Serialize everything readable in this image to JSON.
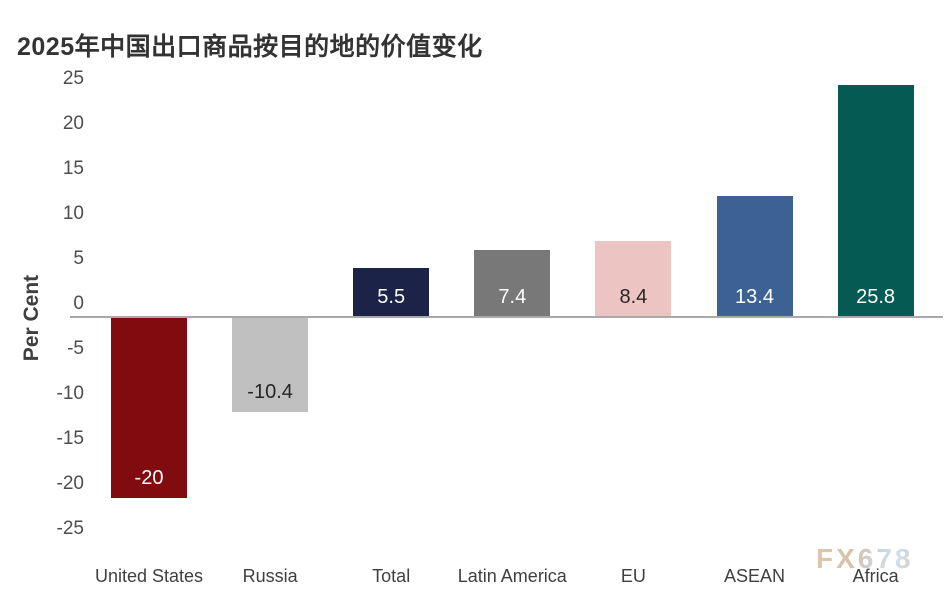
{
  "page": {
    "title": "2025年中国出口商品按目的地的价值变化",
    "watermark": "FX678"
  },
  "chart_data": {
    "type": "bar",
    "title": "2025年中国出口商品按目的地的价值变化",
    "xlabel": "",
    "ylabel": "Per Cent",
    "ylim": [
      -25,
      25
    ],
    "yticks": [
      25,
      20,
      15,
      10,
      5,
      0,
      -5,
      -10,
      -15,
      -20,
      -25
    ],
    "grid": false,
    "legend_position": "none",
    "categories": [
      "United States",
      "Russia",
      "Total",
      "Latin America",
      "EU",
      "ASEAN",
      "Africa"
    ],
    "values": [
      -20,
      -10.4,
      5.5,
      7.4,
      8.4,
      13.4,
      25.8
    ],
    "bar_labels": [
      "-20",
      "-10.4",
      "5.5",
      "7.4",
      "8.4",
      "13.4",
      "25.8"
    ],
    "bar_colors": [
      "#800c10",
      "#c0c0c0",
      "#1b2448",
      "#787878",
      "#ecc4c1",
      "#3b6292",
      "#055b54"
    ],
    "bar_label_colors": [
      "#ffffff",
      "#262626",
      "#ffffff",
      "#ffffff",
      "#262626",
      "#ffffff",
      "#ffffff"
    ],
    "axis_line_color": "#a9a9a9"
  }
}
